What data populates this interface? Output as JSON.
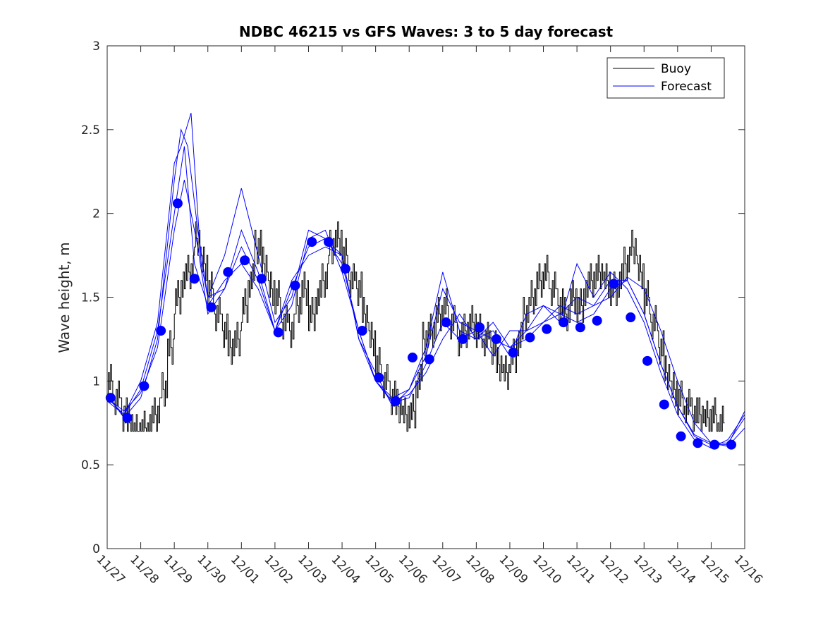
{
  "chart_data": {
    "type": "line",
    "title": "NDBC 46215 vs GFS Waves: 3 to 5 day forecast",
    "xlabel": "",
    "ylabel": "Wave height, m",
    "ylim": [
      0,
      3
    ],
    "xlim": [
      0,
      19
    ],
    "yticks": [
      0,
      0.5,
      1,
      1.5,
      2,
      2.5,
      3
    ],
    "ytick_labels": [
      "0",
      "0.5",
      "1",
      "1.5",
      "2",
      "2.5",
      "3"
    ],
    "xtick_labels": [
      "11/27",
      "11/28",
      "11/29",
      "11/30",
      "12/01",
      "12/02",
      "12/03",
      "12/04",
      "12/05",
      "12/06",
      "12/07",
      "12/08",
      "12/09",
      "12/10",
      "12/11",
      "12/12",
      "12/13",
      "12/14",
      "12/15",
      "12/16"
    ],
    "legend": {
      "location": "top-right",
      "entries": [
        "Buoy",
        "Forecast"
      ]
    },
    "colors": {
      "buoy": "#000000",
      "forecast": "#0000ff",
      "axes": "#262626"
    },
    "buoy": {
      "name": "Buoy",
      "x": [
        0.0,
        0.2,
        0.4,
        0.6,
        0.8,
        1.0,
        1.2,
        1.4,
        1.6,
        1.8,
        2.0,
        2.2,
        2.4,
        2.6,
        2.8,
        3.0,
        3.2,
        3.4,
        3.6,
        3.8,
        4.0,
        4.2,
        4.4,
        4.6,
        4.8,
        5.0,
        5.2,
        5.4,
        5.6,
        5.8,
        6.0,
        6.2,
        6.4,
        6.6,
        6.8,
        7.0,
        7.2,
        7.4,
        7.6,
        7.8,
        8.0,
        8.2,
        8.4,
        8.6,
        8.8,
        9.0,
        9.2,
        9.4,
        9.6,
        9.8,
        10.0,
        10.2,
        10.4,
        10.6,
        10.8,
        11.0,
        11.2,
        11.4,
        11.6,
        11.8,
        12.0,
        12.2,
        12.4,
        12.6,
        12.8,
        13.0,
        13.2,
        13.4,
        13.6,
        13.8,
        14.0,
        14.2,
        14.4,
        14.6,
        14.8,
        15.0,
        15.2,
        15.4,
        15.6,
        15.8,
        16.0,
        16.2,
        16.4,
        16.6,
        16.8,
        17.0,
        17.2,
        17.4,
        17.6,
        17.8,
        18.0,
        18.2
      ],
      "values": [
        1.0,
        0.9,
        0.8,
        0.75,
        0.7,
        0.72,
        0.75,
        0.8,
        0.95,
        1.2,
        1.5,
        1.6,
        1.65,
        1.85,
        1.7,
        1.55,
        1.4,
        1.3,
        1.2,
        1.25,
        1.45,
        1.6,
        1.8,
        1.7,
        1.55,
        1.5,
        1.35,
        1.3,
        1.45,
        1.55,
        1.4,
        1.5,
        1.6,
        1.8,
        1.85,
        1.75,
        1.6,
        1.55,
        1.4,
        1.25,
        1.1,
        1.0,
        0.9,
        0.85,
        0.8,
        0.82,
        1.0,
        1.25,
        1.3,
        1.4,
        1.45,
        1.35,
        1.25,
        1.3,
        1.35,
        1.3,
        1.25,
        1.2,
        1.1,
        1.05,
        1.15,
        1.25,
        1.4,
        1.5,
        1.6,
        1.65,
        1.55,
        1.45,
        1.4,
        1.5,
        1.45,
        1.55,
        1.6,
        1.65,
        1.6,
        1.55,
        1.6,
        1.7,
        1.8,
        1.65,
        1.5,
        1.35,
        1.2,
        1.05,
        0.95,
        0.9,
        0.85,
        0.8,
        0.8,
        0.78,
        0.8,
        0.75
      ]
    },
    "forecast": {
      "name": "Forecast",
      "series": [
        {
          "x": [
            0.0,
            0.5,
            1.0,
            1.5,
            2.0,
            2.3,
            2.6,
            3.0,
            3.5,
            4.0,
            4.5,
            5.0,
            5.5,
            6.0,
            6.5,
            7.0,
            7.5,
            8.0,
            8.5,
            9.0,
            9.5,
            10.0,
            10.5,
            11.0,
            11.5,
            12.0,
            12.5,
            13.0,
            13.5,
            14.0,
            14.5,
            15.0,
            15.5,
            16.0,
            16.5,
            17.0,
            17.5,
            18.0,
            18.5,
            19.0
          ],
          "values": [
            0.9,
            0.8,
            0.95,
            1.3,
            2.0,
            2.4,
            1.7,
            1.45,
            1.6,
            1.7,
            1.55,
            1.3,
            1.55,
            1.8,
            1.85,
            1.7,
            1.3,
            1.0,
            0.87,
            0.9,
            1.1,
            1.35,
            1.25,
            1.3,
            1.25,
            1.2,
            1.3,
            1.35,
            1.4,
            1.35,
            1.4,
            1.55,
            1.6,
            1.4,
            1.1,
            0.85,
            0.67,
            0.62,
            0.62,
            0.82
          ]
        },
        {
          "x": [
            0.0,
            0.5,
            1.0,
            1.5,
            2.0,
            2.2,
            2.4,
            2.7,
            3.0,
            3.5,
            4.0,
            4.5,
            5.0,
            5.5,
            6.0,
            6.5,
            7.0,
            7.5,
            8.0,
            8.5,
            9.0,
            9.5,
            10.0,
            10.5,
            11.0,
            11.5,
            12.0,
            12.5,
            13.0,
            13.5,
            14.0,
            14.5,
            15.0,
            15.5,
            16.0,
            16.5,
            17.0,
            17.5,
            18.0,
            18.5,
            19.0
          ],
          "values": [
            0.92,
            0.78,
            0.9,
            1.25,
            2.2,
            2.5,
            2.4,
            1.9,
            1.5,
            1.75,
            2.15,
            1.75,
            1.35,
            1.5,
            1.9,
            1.85,
            1.75,
            1.25,
            1.05,
            0.85,
            0.95,
            1.2,
            1.65,
            1.3,
            1.25,
            1.3,
            1.15,
            1.4,
            1.45,
            1.35,
            1.7,
            1.5,
            1.65,
            1.55,
            1.35,
            1.05,
            0.8,
            0.65,
            0.6,
            0.65,
            0.8
          ]
        },
        {
          "x": [
            0.0,
            0.5,
            1.0,
            1.5,
            2.0,
            2.2,
            2.5,
            2.8,
            3.0,
            3.5,
            4.0,
            4.5,
            5.0,
            5.5,
            6.0,
            6.5,
            7.0,
            7.5,
            8.0,
            8.5,
            9.0,
            9.5,
            10.0,
            10.5,
            11.0,
            11.5,
            12.0,
            12.5,
            13.0,
            13.5,
            14.0,
            14.5,
            15.0,
            15.5,
            16.0,
            16.5,
            17.0,
            17.5,
            18.0,
            18.5,
            19.0
          ],
          "values": [
            0.88,
            0.8,
            1.0,
            1.35,
            2.3,
            2.4,
            2.6,
            1.7,
            1.5,
            1.55,
            1.9,
            1.65,
            1.3,
            1.45,
            1.85,
            1.9,
            1.65,
            1.3,
            1.0,
            0.9,
            0.95,
            1.15,
            1.55,
            1.35,
            1.3,
            1.15,
            1.3,
            1.3,
            1.45,
            1.4,
            1.5,
            1.45,
            1.6,
            1.6,
            1.4,
            1.1,
            0.85,
            0.68,
            0.63,
            0.63,
            0.78
          ]
        },
        {
          "x": [
            0.0,
            0.5,
            1.0,
            1.5,
            2.0,
            2.3,
            2.7,
            3.0,
            3.5,
            4.0,
            4.5,
            5.0,
            5.5,
            6.0,
            6.5,
            7.0,
            7.5,
            8.0,
            8.5,
            9.0,
            9.5,
            10.0,
            10.5,
            11.0,
            11.5,
            12.0,
            12.5,
            13.0,
            13.5,
            14.0,
            14.5,
            15.0,
            15.5,
            16.0,
            16.5,
            17.0,
            17.5,
            18.0,
            18.5,
            19.0
          ],
          "values": [
            0.9,
            0.82,
            0.93,
            1.2,
            1.9,
            2.2,
            1.8,
            1.4,
            1.55,
            1.8,
            1.6,
            1.3,
            1.6,
            1.75,
            1.8,
            1.75,
            1.25,
            1.0,
            0.88,
            0.92,
            1.05,
            1.25,
            1.4,
            1.25,
            1.35,
            1.2,
            1.25,
            1.35,
            1.45,
            1.4,
            1.45,
            1.5,
            1.62,
            1.55,
            1.3,
            1.0,
            0.75,
            0.63,
            0.61,
            0.72
          ]
        }
      ]
    },
    "forecast_markers": {
      "x": [
        0.1,
        0.6,
        1.1,
        1.6,
        2.1,
        2.6,
        3.1,
        3.6,
        4.1,
        4.6,
        5.1,
        5.6,
        6.1,
        6.6,
        7.1,
        7.6,
        8.1,
        8.6,
        9.1,
        9.6,
        10.1,
        10.6,
        11.1,
        11.6,
        12.1,
        12.6,
        13.1,
        13.6,
        14.1,
        14.6,
        15.1,
        15.6,
        16.1,
        16.6,
        17.1,
        17.6,
        18.1,
        18.6
      ],
      "values": [
        0.9,
        0.78,
        0.97,
        1.3,
        2.06,
        1.61,
        1.44,
        1.65,
        1.72,
        1.61,
        1.29,
        1.57,
        1.83,
        1.83,
        1.67,
        1.3,
        1.02,
        0.88,
        1.14,
        1.13,
        1.35,
        1.25,
        1.32,
        1.25,
        1.17,
        1.26,
        1.31,
        1.35,
        1.32,
        1.36,
        1.58,
        1.38,
        1.12,
        0.86,
        0.67,
        0.63,
        0.62,
        0.62
      ]
    }
  }
}
